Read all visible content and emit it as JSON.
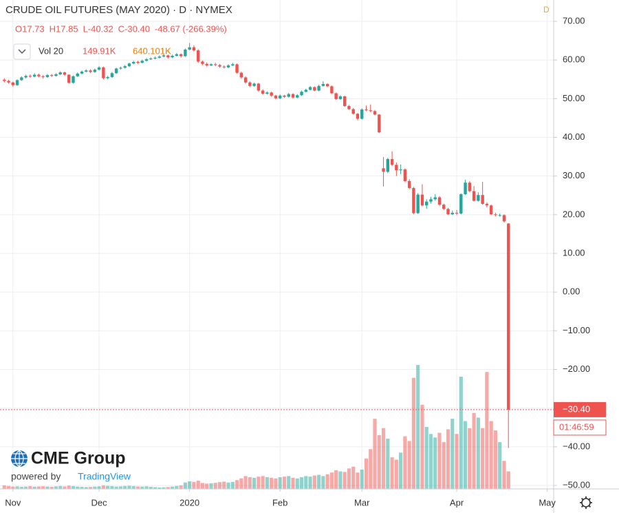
{
  "header": {
    "title": "CRUDE OIL FUTURES (MAY 2020) · D · NYMEX",
    "interval_badge": "D",
    "ohlc_legend": [
      "O17.73",
      "H17.85",
      "L-40.32",
      "C-30.40",
      "-48.67 (-266.39%)"
    ],
    "volume_legend": {
      "label": "Vol 20",
      "value": "149.91K",
      "average": "640.101K"
    }
  },
  "branding": {
    "name": "CME Group",
    "powered": "powered by",
    "platform": "TradingView"
  },
  "price_tag": {
    "last": "−30.40",
    "countdown": "01:46:59"
  },
  "chart_data": {
    "type": "candlestick",
    "up_color": "#26a69a",
    "down_color": "#ef5350",
    "grid": true,
    "xlim": [
      -1,
      127.5
    ],
    "xticks": [
      {
        "value": 2,
        "label": "Nov"
      },
      {
        "value": 22,
        "label": "Dec"
      },
      {
        "value": 43,
        "label": "2020"
      },
      {
        "value": 64,
        "label": "Feb"
      },
      {
        "value": 83,
        "label": "Mar"
      },
      {
        "value": 105,
        "label": "Apr"
      },
      {
        "value": 126,
        "label": "May"
      }
    ],
    "ylim": [
      -50,
      70
    ],
    "yticks": [
      {
        "value": 70,
        "label": "70.00"
      },
      {
        "value": 60,
        "label": "60.00"
      },
      {
        "value": 50,
        "label": "50.00"
      },
      {
        "value": 40,
        "label": "40.00"
      },
      {
        "value": 30,
        "label": "30.00"
      },
      {
        "value": 20,
        "label": "20.00"
      },
      {
        "value": 10,
        "label": "10.00"
      },
      {
        "value": 0,
        "label": "0.00"
      },
      {
        "value": -10,
        "label": "−10.00"
      },
      {
        "value": -20,
        "label": "−20.00"
      },
      {
        "value": -30,
        "label": "−30.00"
      },
      {
        "value": -40,
        "label": "−40.00"
      },
      {
        "value": -50,
        "label": "−50.00"
      }
    ],
    "y2lim": [
      0,
      4000000
    ],
    "ohlc": [
      [
        54.9,
        55.3,
        54.2,
        54.6
      ],
      [
        54.6,
        54.9,
        53.9,
        54.2
      ],
      [
        54.2,
        54.4,
        53.1,
        53.5
      ],
      [
        53.5,
        55.0,
        53.3,
        54.8
      ],
      [
        54.8,
        55.8,
        54.6,
        55.5
      ],
      [
        55.5,
        56.2,
        55.2,
        55.9
      ],
      [
        55.9,
        56.3,
        55.4,
        55.7
      ],
      [
        55.7,
        56.6,
        55.5,
        56.2
      ],
      [
        56.2,
        56.5,
        55.5,
        55.8
      ],
      [
        55.8,
        56.1,
        55.2,
        55.6
      ],
      [
        55.6,
        56.4,
        55.4,
        56.1
      ],
      [
        56.1,
        56.4,
        55.6,
        55.9
      ],
      [
        55.9,
        56.6,
        55.7,
        56.3
      ],
      [
        56.3,
        57.1,
        56.1,
        56.8
      ],
      [
        56.8,
        57.0,
        55.9,
        56.2
      ],
      [
        56.2,
        56.3,
        53.9,
        54.1
      ],
      [
        54.1,
        56.0,
        53.9,
        55.8
      ],
      [
        55.8,
        56.8,
        55.6,
        56.5
      ],
      [
        56.5,
        57.3,
        56.3,
        57.0
      ],
      [
        57.0,
        57.6,
        56.8,
        57.3
      ],
      [
        57.3,
        57.6,
        56.6,
        56.9
      ],
      [
        56.9,
        57.8,
        56.7,
        57.5
      ],
      [
        57.5,
        58.4,
        57.3,
        58.1
      ],
      [
        58.1,
        58.3,
        55.0,
        55.3
      ],
      [
        55.3,
        55.9,
        55.0,
        55.6
      ],
      [
        55.6,
        56.9,
        55.4,
        56.6
      ],
      [
        56.6,
        58.0,
        56.4,
        57.8
      ],
      [
        57.8,
        58.3,
        57.5,
        58.0
      ],
      [
        58.0,
        58.7,
        57.8,
        58.4
      ],
      [
        58.4,
        59.3,
        58.2,
        59.1
      ],
      [
        59.1,
        59.8,
        58.9,
        59.5
      ],
      [
        59.5,
        59.8,
        59.0,
        59.3
      ],
      [
        59.3,
        60.1,
        59.1,
        59.8
      ],
      [
        59.8,
        60.5,
        59.6,
        60.2
      ],
      [
        60.2,
        60.7,
        60.0,
        60.4
      ],
      [
        60.4,
        60.9,
        60.2,
        60.6
      ],
      [
        60.6,
        61.2,
        60.4,
        60.9
      ],
      [
        60.9,
        61.5,
        60.7,
        61.2
      ],
      [
        61.2,
        61.4,
        60.4,
        60.7
      ],
      [
        60.7,
        61.4,
        60.5,
        61.1
      ],
      [
        61.1,
        61.8,
        60.9,
        61.5
      ],
      [
        61.5,
        61.7,
        60.6,
        61.0
      ],
      [
        61.0,
        63.0,
        60.8,
        62.7
      ],
      [
        62.7,
        64.4,
        62.5,
        63.3
      ],
      [
        63.3,
        63.8,
        62.2,
        62.5
      ],
      [
        62.5,
        62.8,
        59.3,
        59.6
      ],
      [
        59.6,
        59.9,
        58.7,
        59.0
      ],
      [
        59.0,
        59.4,
        58.3,
        58.6
      ],
      [
        58.6,
        59.2,
        58.4,
        58.9
      ],
      [
        58.9,
        59.3,
        58.4,
        58.7
      ],
      [
        58.7,
        59.0,
        58.0,
        58.3
      ],
      [
        58.3,
        58.6,
        57.8,
        58.1
      ],
      [
        58.1,
        58.9,
        57.9,
        58.6
      ],
      [
        58.6,
        59.3,
        58.4,
        58.9
      ],
      [
        58.9,
        59.1,
        56.5,
        56.7
      ],
      [
        56.7,
        57.0,
        55.2,
        55.5
      ],
      [
        55.5,
        55.8,
        53.9,
        54.2
      ],
      [
        54.2,
        54.5,
        53.0,
        53.3
      ],
      [
        53.3,
        54.2,
        53.1,
        53.9
      ],
      [
        53.9,
        54.1,
        51.8,
        52.1
      ],
      [
        52.1,
        52.4,
        51.0,
        51.3
      ],
      [
        51.3,
        51.9,
        51.1,
        51.6
      ],
      [
        51.6,
        51.8,
        50.5,
        50.8
      ],
      [
        50.8,
        51.0,
        49.8,
        50.1
      ],
      [
        50.1,
        51.1,
        49.9,
        50.8
      ],
      [
        50.8,
        51.0,
        50.2,
        50.5
      ],
      [
        50.5,
        51.5,
        50.3,
        51.2
      ],
      [
        51.2,
        51.4,
        50.0,
        50.3
      ],
      [
        50.3,
        51.2,
        50.1,
        50.9
      ],
      [
        50.9,
        52.1,
        50.7,
        51.8
      ],
      [
        51.8,
        52.6,
        51.6,
        52.3
      ],
      [
        52.3,
        53.3,
        52.1,
        53.0
      ],
      [
        53.0,
        53.2,
        51.9,
        52.1
      ],
      [
        52.1,
        53.6,
        51.9,
        53.3
      ],
      [
        53.3,
        54.5,
        53.1,
        53.8
      ],
      [
        53.8,
        54.0,
        53.0,
        53.2
      ],
      [
        53.2,
        53.4,
        51.2,
        51.4
      ],
      [
        51.4,
        51.6,
        49.7,
        49.9
      ],
      [
        49.9,
        50.9,
        49.7,
        50.6
      ],
      [
        50.6,
        50.8,
        47.9,
        48.1
      ],
      [
        48.1,
        48.4,
        47.1,
        47.3
      ],
      [
        47.3,
        47.6,
        45.9,
        46.1
      ],
      [
        46.1,
        46.3,
        44.4,
        44.8
      ],
      [
        44.8,
        47.5,
        44.6,
        47.2
      ],
      [
        47.2,
        48.2,
        46.8,
        47.0
      ],
      [
        47.0,
        48.5,
        46.5,
        46.8
      ],
      [
        46.8,
        47.1,
        45.7,
        45.9
      ],
      [
        45.9,
        46.0,
        41.1,
        41.3
      ],
      [
        32.0,
        34.9,
        27.3,
        31.1
      ],
      [
        31.1,
        34.7,
        30.8,
        34.4
      ],
      [
        34.4,
        36.4,
        32.6,
        32.9
      ],
      [
        32.9,
        33.5,
        30.0,
        31.5
      ],
      [
        31.5,
        33.0,
        30.5,
        31.7
      ],
      [
        31.7,
        32.0,
        28.4,
        28.7
      ],
      [
        28.7,
        29.2,
        26.6,
        26.9
      ],
      [
        26.9,
        27.2,
        20.1,
        20.4
      ],
      [
        20.4,
        25.6,
        20.2,
        25.2
      ],
      [
        25.2,
        27.9,
        22.2,
        22.4
      ],
      [
        22.4,
        24.0,
        21.5,
        23.4
      ],
      [
        23.4,
        24.6,
        22.9,
        24.0
      ],
      [
        24.0,
        25.3,
        23.6,
        24.5
      ],
      [
        24.5,
        24.8,
        22.3,
        22.6
      ],
      [
        22.6,
        22.9,
        21.2,
        21.5
      ],
      [
        21.5,
        21.8,
        19.9,
        20.1
      ],
      [
        20.1,
        21.1,
        19.9,
        20.5
      ],
      [
        20.5,
        21.2,
        19.9,
        20.3
      ],
      [
        20.3,
        25.5,
        20.1,
        25.3
      ],
      [
        25.3,
        29.1,
        25.1,
        28.3
      ],
      [
        28.3,
        28.7,
        25.8,
        26.1
      ],
      [
        26.1,
        27.4,
        23.4,
        23.6
      ],
      [
        23.6,
        25.8,
        23.4,
        25.1
      ],
      [
        25.1,
        28.5,
        22.6,
        22.8
      ],
      [
        22.8,
        23.2,
        21.9,
        22.4
      ],
      [
        22.4,
        22.6,
        19.9,
        20.1
      ],
      [
        20.1,
        20.5,
        19.6,
        19.9
      ],
      [
        19.9,
        20.3,
        19.5,
        19.9
      ],
      [
        19.9,
        20.1,
        18.0,
        18.3
      ],
      [
        17.73,
        17.85,
        -40.32,
        -30.4
      ]
    ],
    "volume": [
      30000,
      25000,
      20000,
      22000,
      18000,
      20000,
      24000,
      19000,
      21000,
      23000,
      20000,
      18000,
      22000,
      25000,
      21000,
      28000,
      24000,
      20000,
      18000,
      15000,
      17000,
      20000,
      22000,
      30000,
      26000,
      24000,
      20000,
      22000,
      25000,
      27000,
      24000,
      21000,
      20000,
      22000,
      18000,
      15000,
      12000,
      14000,
      16000,
      20000,
      25000,
      30000,
      55000,
      65000,
      60000,
      70000,
      50000,
      45000,
      48000,
      52000,
      58000,
      62000,
      55000,
      60000,
      75000,
      90000,
      110000,
      100000,
      95000,
      105000,
      110000,
      100000,
      95000,
      90000,
      100000,
      105000,
      110000,
      95000,
      90000,
      100000,
      110000,
      105000,
      115000,
      120000,
      110000,
      125000,
      140000,
      160000,
      150000,
      145000,
      175000,
      190000,
      140000,
      165000,
      260000,
      340000,
      600000,
      460000,
      520000,
      430000,
      270000,
      250000,
      310000,
      450000,
      410000,
      950000,
      1060000,
      720000,
      530000,
      470000,
      440000,
      480000,
      400000,
      510000,
      600000,
      470000,
      960000,
      580000,
      520000,
      650000,
      610000,
      520000,
      1000000,
      580000,
      500000,
      400000,
      240000,
      149910
    ]
  }
}
